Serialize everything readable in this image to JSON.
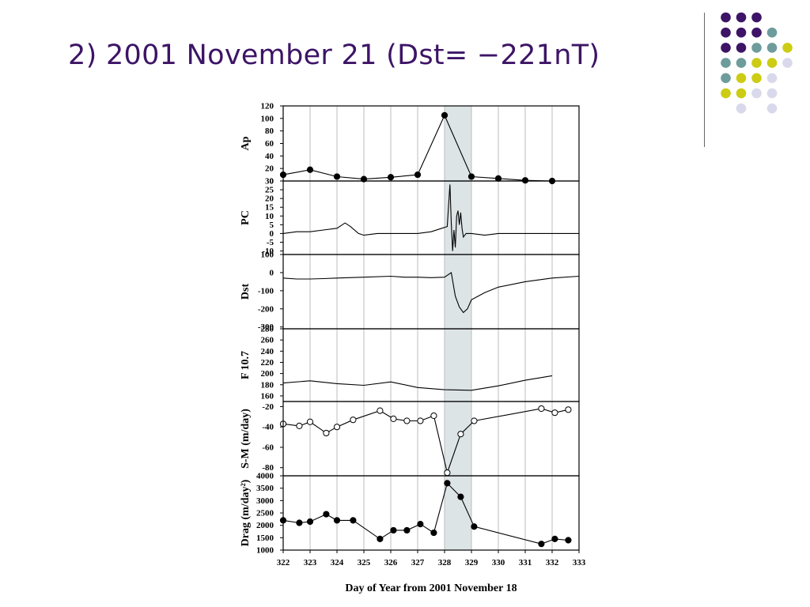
{
  "slide": {
    "title": "2) 2001 November 21 (Dst= −221nT)"
  },
  "decoration": {
    "dot_colors": {
      "purple": "#3d1466",
      "teal": "#6e9c9c",
      "yellow": "#cccc14",
      "lavender": "#d9d9eb"
    }
  },
  "chart_data": {
    "type": "line",
    "shared_x": {
      "label": "Day of Year from 2001 November 18",
      "range": [
        322,
        333
      ],
      "ticks": [
        "322",
        "323",
        "324",
        "325",
        "326",
        "327",
        "328",
        "329",
        "330",
        "331",
        "332",
        "333"
      ]
    },
    "highlight_band": {
      "x_range": [
        328,
        329
      ],
      "color": "#dde4e6"
    },
    "grid": "vertical",
    "panels": [
      {
        "id": "ap",
        "ylabel": "Ap",
        "ylim": [
          0,
          120
        ],
        "ticks": [
          "120",
          "100",
          "80",
          "60",
          "40",
          "20",
          "0"
        ],
        "markers": "filled",
        "series": [
          {
            "x": [
              322,
              323,
              324,
              325,
              326,
              327,
              328,
              329,
              330,
              331,
              332
            ],
            "y": [
              10,
              18,
              7,
              3,
              6,
              10,
              105,
              7,
              4,
              1,
              0
            ]
          }
        ]
      },
      {
        "id": "pc",
        "ylabel": "PC",
        "ylim": [
          -12,
          30
        ],
        "ticks": [
          "30",
          "25",
          "20",
          "15",
          "10",
          "5",
          "0",
          "-5",
          "-10"
        ],
        "markers": "none",
        "series": [
          {
            "x": [
              322,
              322.5,
              323,
              323.5,
              324,
              324.3,
              324.5,
              324.8,
              325,
              325.5,
              326,
              326.5,
              327,
              327.5,
              327.9,
              328.1,
              328.2,
              328.25,
              328.3,
              328.35,
              328.4,
              328.45,
              328.5,
              328.55,
              328.6,
              328.65,
              328.7,
              328.8,
              329,
              329.5,
              330,
              331,
              332,
              333
            ],
            "y": [
              0,
              1,
              1,
              2,
              3,
              6,
              4,
              0,
              -1,
              0,
              0,
              0,
              0,
              1,
              3,
              4,
              28,
              6,
              -10,
              2,
              -8,
              10,
              13,
              5,
              12,
              3,
              -2,
              0,
              0,
              -1,
              0,
              0,
              0,
              0
            ]
          }
        ]
      },
      {
        "id": "dst",
        "ylabel": "Dst",
        "ylim": [
          -310,
          100
        ],
        "ticks": [
          "100",
          "0",
          "-100",
          "-200",
          "-300"
        ],
        "markers": "none",
        "series": [
          {
            "x": [
              322,
              322.5,
              323,
              323.5,
              324,
              325,
              326,
              326.5,
              327,
              327.5,
              328,
              328.25,
              328.4,
              328.55,
              328.7,
              328.85,
              329,
              329.5,
              330,
              331,
              332,
              333
            ],
            "y": [
              -30,
              -35,
              -35,
              -33,
              -30,
              -25,
              -20,
              -25,
              -25,
              -28,
              -25,
              0,
              -130,
              -190,
              -220,
              -200,
              -150,
              -110,
              -80,
              -50,
              -30,
              -20
            ]
          }
        ]
      },
      {
        "id": "f107",
        "ylabel": "F 10.7",
        "ylim": [
          150,
          280
        ],
        "ticks": [
          "280",
          "260",
          "240",
          "220",
          "200",
          "180",
          "160"
        ],
        "markers": "none",
        "series": [
          {
            "x": [
              322,
              323,
              324,
              325,
              326,
              327,
              328,
              329,
              330,
              331,
              332
            ],
            "y": [
              183,
              187,
              182,
              179,
              185,
              175,
              171,
              170,
              178,
              188,
              196
            ]
          }
        ]
      },
      {
        "id": "sm",
        "ylabel": "S-M (m/day)",
        "ylim": [
          -88,
          -15
        ],
        "ticks": [
          "-20",
          "-40",
          "-60",
          "-80"
        ],
        "markers": "open",
        "series": [
          {
            "x": [
              322,
              322.6,
              323,
              323.6,
              324,
              324.6,
              325.6,
              326.1,
              326.6,
              327.1,
              327.6,
              328.1,
              328.6,
              329.1,
              331.6,
              332.1,
              332.6
            ],
            "y": [
              -37,
              -39,
              -35,
              -46,
              -40,
              -33,
              -24,
              -32,
              -34,
              -34,
              -29,
              -85,
              -47,
              -34,
              -22,
              -26,
              -23
            ]
          }
        ]
      },
      {
        "id": "drag",
        "ylabel": "Drag (m/day²)",
        "ylim": [
          1000,
          4000
        ],
        "ticks": [
          "4000",
          "3500",
          "3000",
          "2500",
          "2000",
          "1500",
          "1000"
        ],
        "markers": "filled",
        "series": [
          {
            "x": [
              322,
              322.6,
              323,
              323.6,
              324,
              324.6,
              325.6,
              326.1,
              326.6,
              327.1,
              327.6,
              328.1,
              328.6,
              329.1,
              331.6,
              332.1,
              332.6
            ],
            "y": [
              2200,
              2100,
              2150,
              2450,
              2200,
              2200,
              1450,
              1800,
              1800,
              2050,
              1700,
              3700,
              3150,
              1950,
              1250,
              1450,
              1400
            ]
          }
        ]
      }
    ]
  }
}
